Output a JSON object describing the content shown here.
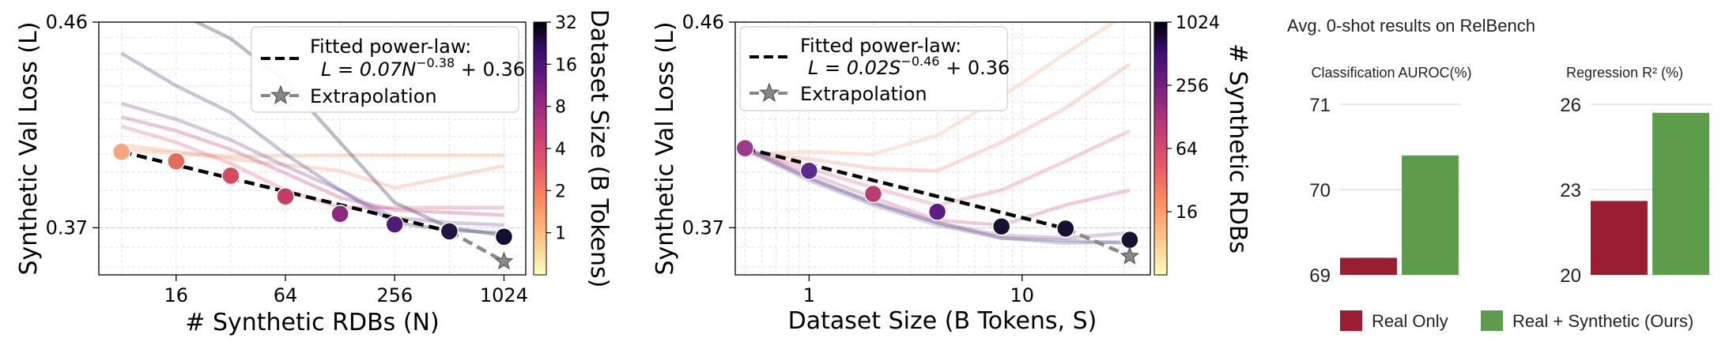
{
  "chart_data": [
    {
      "type": "line",
      "panel": "left",
      "xlabel": "# Synthetic RDBs (N)",
      "ylabel": "Synthetic Val Loss (L)",
      "xscale": "log2",
      "yscale": "log",
      "xlim": [
        6,
        1350
      ],
      "ylim": [
        0.352,
        0.46
      ],
      "xticks": [
        16,
        64,
        256,
        1024
      ],
      "xtick_labels": [
        "16",
        "64",
        "256",
        "1024"
      ],
      "yticks": [
        0.46,
        0.37
      ],
      "ytick_labels": [
        "0.46",
        "0.37"
      ],
      "grid": true,
      "legend_position": "top-right",
      "legend": [
        {
          "label": "Fitted power-law:",
          "formula_prefix": "L = 0.07",
          "formula_var": "N",
          "formula_exp": "−0.38",
          "formula_suffix": " + 0.36"
        },
        {
          "label": "Extrapolation"
        }
      ],
      "colorbar": {
        "label": "Dataset Size (B Tokens)",
        "ticks": [
          "32",
          "16",
          "8",
          "4",
          "2",
          "1"
        ],
        "scale": "log2",
        "range": [
          0.5,
          32
        ]
      },
      "curves": [
        {
          "size": 0.5,
          "color": "#fba77a",
          "points": [
            [
              8,
              0.402
            ],
            [
              32,
              0.399
            ],
            [
              128,
              0.3995
            ],
            [
              512,
              0.3995
            ],
            [
              1024,
              0.3995
            ]
          ]
        },
        {
          "size": 1,
          "color": "#f6a27e",
          "points": [
            [
              8,
              0.404
            ],
            [
              32,
              0.398
            ],
            [
              128,
              0.393
            ],
            [
              256,
              0.386
            ],
            [
              1024,
              0.395
            ]
          ]
        },
        {
          "size": 2,
          "color": "#e57390",
          "points": [
            [
              8,
              0.412
            ],
            [
              16,
              0.405
            ],
            [
              32,
              0.396
            ],
            [
              64,
              0.385
            ],
            [
              128,
              0.378
            ],
            [
              256,
              0.378
            ],
            [
              512,
              0.378
            ],
            [
              1024,
              0.378
            ]
          ]
        },
        {
          "size": 4,
          "color": "#c65590",
          "points": [
            [
              8,
              0.416
            ],
            [
              16,
              0.41
            ],
            [
              32,
              0.402
            ],
            [
              64,
              0.392
            ],
            [
              128,
              0.382
            ],
            [
              256,
              0.377
            ],
            [
              512,
              0.376
            ],
            [
              1024,
              0.375
            ]
          ]
        },
        {
          "size": 8,
          "color": "#8b5fa3",
          "points": [
            [
              8,
              0.422
            ],
            [
              16,
              0.415
            ],
            [
              32,
              0.406
            ],
            [
              64,
              0.395
            ],
            [
              128,
              0.385
            ],
            [
              256,
              0.374
            ],
            [
              512,
              0.372
            ],
            [
              1024,
              0.371
            ]
          ]
        },
        {
          "size": 16,
          "color": "#5d5a8c",
          "points": [
            [
              8,
              0.445
            ],
            [
              16,
              0.43
            ],
            [
              32,
              0.418
            ],
            [
              64,
              0.4
            ],
            [
              128,
              0.385
            ],
            [
              256,
              0.372
            ],
            [
              512,
              0.369
            ],
            [
              1024,
              0.368
            ]
          ]
        },
        {
          "size": 32,
          "color": "#3f3d5e",
          "points": [
            [
              16,
              0.465
            ],
            [
              32,
              0.452
            ],
            [
              64,
              0.432
            ],
            [
              128,
              0.405
            ],
            [
              256,
              0.38
            ],
            [
              512,
              0.37
            ],
            [
              1024,
              0.367
            ]
          ]
        }
      ],
      "fit_points": [
        {
          "N": 8,
          "L": 0.401,
          "color": "#f6a57c"
        },
        {
          "N": 16,
          "L": 0.397,
          "color": "#e46b5c"
        },
        {
          "N": 32,
          "L": 0.391,
          "color": "#d54a5e"
        },
        {
          "N": 64,
          "L": 0.3825,
          "color": "#c43d64"
        },
        {
          "N": 128,
          "L": 0.3755,
          "color": "#8c2a80"
        },
        {
          "N": 256,
          "L": 0.3713,
          "color": "#4f1d79"
        },
        {
          "N": 512,
          "L": 0.3686,
          "color": "#241442"
        },
        {
          "N": 1024,
          "L": 0.3665,
          "color": "#15102e"
        }
      ],
      "fit_line": {
        "x_start": 8,
        "x_end": 512
      },
      "extrapolation": {
        "x_start": 512,
        "x_end": 1024,
        "star": {
          "N": 1024,
          "L": 0.357
        }
      }
    },
    {
      "type": "line",
      "panel": "middle",
      "xlabel": "Dataset Size (B Tokens, S)",
      "ylabel": "Synthetic Val Loss (L)",
      "xscale": "log10",
      "yscale": "log",
      "xlim": [
        0.45,
        40
      ],
      "ylim": [
        0.352,
        0.46
      ],
      "xticks": [
        1,
        10
      ],
      "xtick_labels": [
        "1",
        "10"
      ],
      "yticks": [
        0.46,
        0.37
      ],
      "ytick_labels": [
        "0.46",
        "0.37"
      ],
      "grid": true,
      "legend_position": "top-left",
      "legend": [
        {
          "label": "Fitted power-law:",
          "formula_prefix": "L = 0.02",
          "formula_var": "S",
          "formula_exp": "−0.46",
          "formula_suffix": " + 0.36"
        },
        {
          "label": "Extrapolation"
        }
      ],
      "colorbar": {
        "label": "# Synthetic RDBs",
        "ticks": [
          "1024",
          "256",
          "64",
          "16"
        ],
        "scale": "log2",
        "range": [
          4,
          1024
        ]
      },
      "curves": [
        {
          "rdbs": 4,
          "color": "#fbb494",
          "points": [
            [
              0.5,
              0.4
            ],
            [
              1,
              0.401
            ],
            [
              2,
              0.4
            ],
            [
              4,
              0.408
            ],
            [
              8,
              0.425
            ],
            [
              16,
              0.445
            ],
            [
              32,
              0.465
            ]
          ]
        },
        {
          "rdbs": 8,
          "color": "#f39a92",
          "points": [
            [
              0.5,
              0.401
            ],
            [
              1,
              0.398
            ],
            [
              2,
              0.394
            ],
            [
              4,
              0.393
            ],
            [
              8,
              0.405
            ],
            [
              16,
              0.42
            ],
            [
              32,
              0.44
            ]
          ]
        },
        {
          "rdbs": 16,
          "color": "#e07b99",
          "points": [
            [
              0.5,
              0.402
            ],
            [
              1,
              0.394
            ],
            [
              2,
              0.386
            ],
            [
              4,
              0.379
            ],
            [
              8,
              0.385
            ],
            [
              16,
              0.397
            ],
            [
              32,
              0.41
            ]
          ]
        },
        {
          "rdbs": 32,
          "color": "#cf6ca0",
          "points": [
            [
              0.5,
              0.402
            ],
            [
              1,
              0.392
            ],
            [
              2,
              0.382
            ],
            [
              4,
              0.373
            ],
            [
              8,
              0.371
            ],
            [
              16,
              0.379
            ],
            [
              32,
              0.385
            ]
          ]
        },
        {
          "rdbs": 64,
          "color": "#a86bad",
          "points": [
            [
              0.5,
              0.402
            ],
            [
              1,
              0.39
            ],
            [
              2,
              0.38
            ],
            [
              4,
              0.372
            ],
            [
              8,
              0.367
            ],
            [
              16,
              0.366
            ],
            [
              32,
              0.368
            ]
          ]
        },
        {
          "rdbs": 256,
          "color": "#8a7fb3",
          "points": [
            [
              0.5,
              0.402
            ],
            [
              1,
              0.389
            ],
            [
              2,
              0.379
            ],
            [
              4,
              0.371
            ],
            [
              8,
              0.366
            ],
            [
              16,
              0.364
            ],
            [
              32,
              0.3645
            ]
          ]
        },
        {
          "rdbs": 1024,
          "color": "#6c6b95",
          "points": [
            [
              0.5,
              0.403
            ],
            [
              1,
              0.39
            ],
            [
              2,
              0.38
            ],
            [
              4,
              0.372
            ],
            [
              8,
              0.366
            ],
            [
              16,
              0.365
            ],
            [
              32,
              0.364
            ]
          ]
        }
      ],
      "fit_points": [
        {
          "S": 0.5,
          "L": 0.4025,
          "color": "#9a3a8b"
        },
        {
          "S": 1,
          "L": 0.393,
          "color": "#5b2a8a"
        },
        {
          "S": 2,
          "L": 0.3835,
          "color": "#b73e6e"
        },
        {
          "S": 4,
          "L": 0.3763,
          "color": "#5c1e82"
        },
        {
          "S": 8,
          "L": 0.3705,
          "color": "#181230"
        },
        {
          "S": 16,
          "L": 0.3697,
          "color": "#181230"
        },
        {
          "S": 32,
          "L": 0.3653,
          "color": "#181230"
        }
      ],
      "fit_line": {
        "x_start": 0.5,
        "x_end": 16
      },
      "extrapolation": {
        "x_start": 16,
        "x_end": 32,
        "star": {
          "S": 32,
          "L": 0.359
        }
      }
    },
    {
      "type": "bar",
      "panel": "right-classification",
      "title": "Classification AUROC(%)",
      "categories": [
        "Real Only",
        "Real + Synthetic (Ours)"
      ],
      "values": [
        69.2,
        70.4
      ],
      "ylim": [
        69,
        71
      ],
      "yticks": [
        "71",
        "70",
        "69"
      ]
    },
    {
      "type": "bar",
      "panel": "right-regression",
      "title": "Regression R² (%)",
      "categories": [
        "Real Only",
        "Real + Synthetic (Ours)"
      ],
      "values": [
        22.6,
        25.7
      ],
      "ylim": [
        20,
        26
      ],
      "yticks": [
        "26",
        "23",
        "20"
      ]
    }
  ],
  "bars_panel": {
    "title": "Avg. 0-shot results on RelBench",
    "legend": [
      {
        "label": "Real Only",
        "color": "#9b1d32"
      },
      {
        "label": "Real + Synthetic (Ours)",
        "color": "#5d9c4a"
      }
    ]
  }
}
